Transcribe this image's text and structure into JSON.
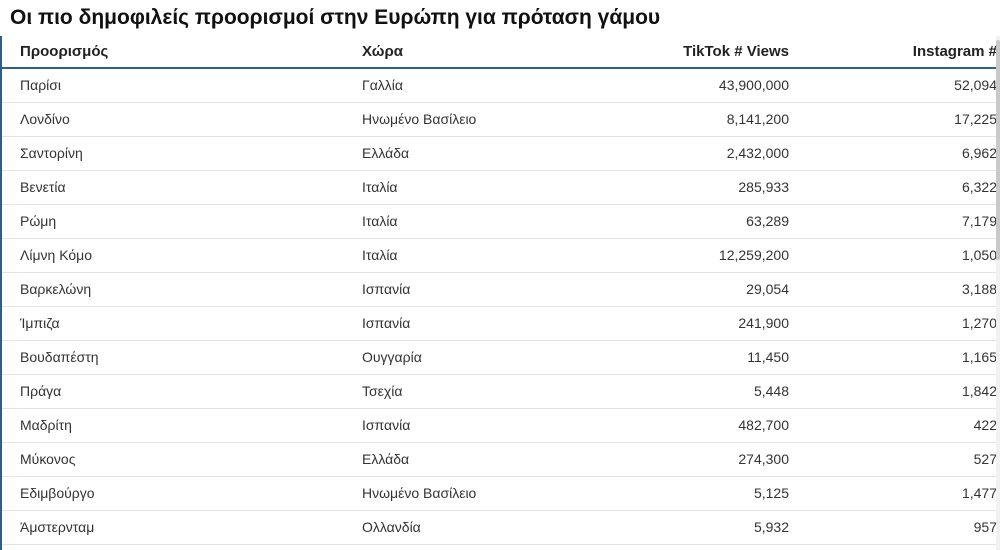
{
  "title": "Οι πιο δημοφιλείς προορισμοί στην Ευρώπη για πρόταση γάμου",
  "columns": [
    "Προορισμός",
    "Χώρα",
    "TikTok # Views",
    "Instagram #"
  ],
  "rows": [
    [
      "Παρίσι",
      "Γαλλία",
      "43,900,000",
      "52,094"
    ],
    [
      "Λονδίνο",
      "Ηνωμένο Βασίλειο",
      "8,141,200",
      "17,225"
    ],
    [
      "Σαντορίνη",
      "Ελλάδα",
      "2,432,000",
      "6,962"
    ],
    [
      "Βενετία",
      "Ιταλία",
      "285,933",
      "6,322"
    ],
    [
      "Ρώμη",
      "Ιταλία",
      "63,289",
      "7,179"
    ],
    [
      "Λίμνη Κόμο",
      "Ιταλία",
      "12,259,200",
      "1,050"
    ],
    [
      "Βαρκελώνη",
      "Ισπανία",
      "29,054",
      "3,188"
    ],
    [
      "Ίμπιζα",
      "Ισπανία",
      "241,900",
      "1,270"
    ],
    [
      "Βουδαπέστη",
      "Ουγγαρία",
      "11,450",
      "1,165"
    ],
    [
      "Πράγα",
      "Τσεχία",
      "5,448",
      "1,842"
    ],
    [
      "Μαδρίτη",
      "Ισπανία",
      "482,700",
      "422"
    ],
    [
      "Μύκονος",
      "Ελλάδα",
      "274,300",
      "527"
    ],
    [
      "Εδιμβούργο",
      "Ηνωμένο Βασίλειο",
      "5,125",
      "1,477"
    ],
    [
      "Άμστερνταμ",
      "Ολλανδία",
      "5,932",
      "957"
    ]
  ]
}
